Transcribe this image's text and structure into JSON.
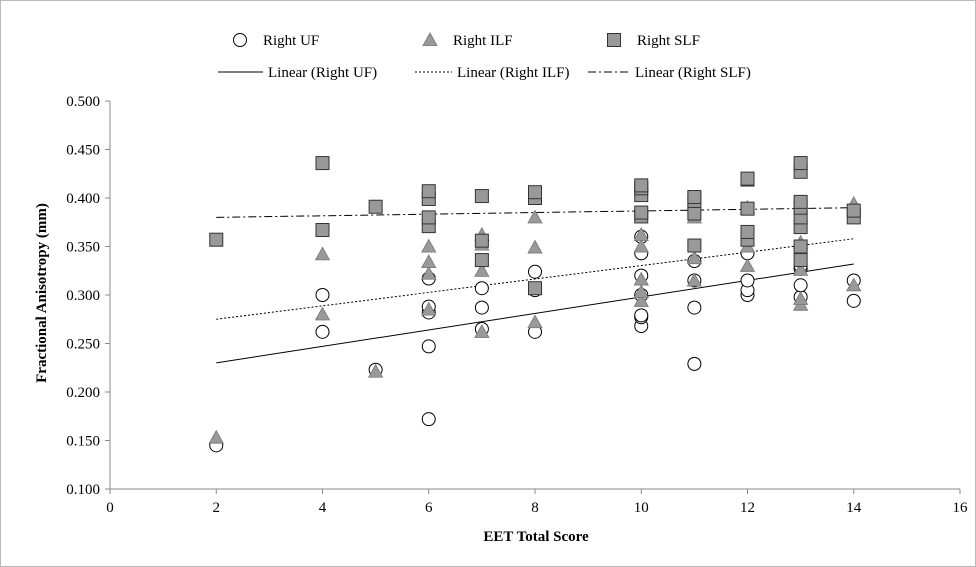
{
  "chart_data": {
    "type": "scatter",
    "title": "",
    "xlabel": "EET Total Score",
    "ylabel": "Fractional Anisotropy (mm)",
    "xlim": [
      0,
      16
    ],
    "ylim": [
      0.1,
      0.5
    ],
    "x_ticks": [
      "0",
      "2",
      "4",
      "6",
      "8",
      "10",
      "12",
      "14",
      "16"
    ],
    "y_ticks": [
      "0.100",
      "0.150",
      "0.200",
      "0.250",
      "0.300",
      "0.350",
      "0.400",
      "0.450",
      "0.500"
    ],
    "grid": "none",
    "legend_position": "top",
    "series": [
      {
        "name": "Right UF",
        "marker": "circle",
        "color": "#ffffff",
        "points": [
          [
            2,
            0.145
          ],
          [
            4,
            0.3
          ],
          [
            4,
            0.262
          ],
          [
            5,
            0.223
          ],
          [
            6,
            0.172
          ],
          [
            6,
            0.247
          ],
          [
            6,
            0.282
          ],
          [
            6,
            0.288
          ],
          [
            6,
            0.317
          ],
          [
            7,
            0.265
          ],
          [
            7,
            0.287
          ],
          [
            7,
            0.307
          ],
          [
            8,
            0.262
          ],
          [
            8,
            0.305
          ],
          [
            8,
            0.324
          ],
          [
            10,
            0.268
          ],
          [
            10,
            0.277
          ],
          [
            10,
            0.279
          ],
          [
            10,
            0.3
          ],
          [
            10,
            0.32
          ],
          [
            10,
            0.343
          ],
          [
            10,
            0.36
          ],
          [
            11,
            0.229
          ],
          [
            11,
            0.287
          ],
          [
            11,
            0.315
          ],
          [
            11,
            0.335
          ],
          [
            12,
            0.3
          ],
          [
            12,
            0.305
          ],
          [
            12,
            0.315
          ],
          [
            12,
            0.343
          ],
          [
            13,
            0.298
          ],
          [
            13,
            0.31
          ],
          [
            13,
            0.327
          ],
          [
            13,
            0.33
          ],
          [
            14,
            0.294
          ],
          [
            14,
            0.315
          ]
        ]
      },
      {
        "name": "Right ILF",
        "marker": "triangle",
        "color": "#999999",
        "points": [
          [
            2,
            0.153
          ],
          [
            4,
            0.342
          ],
          [
            4,
            0.28
          ],
          [
            5,
            0.221
          ],
          [
            6,
            0.285
          ],
          [
            6,
            0.322
          ],
          [
            6,
            0.334
          ],
          [
            6,
            0.35
          ],
          [
            7,
            0.262
          ],
          [
            7,
            0.325
          ],
          [
            7,
            0.352
          ],
          [
            7,
            0.362
          ],
          [
            8,
            0.272
          ],
          [
            8,
            0.349
          ],
          [
            8,
            0.38
          ],
          [
            10,
            0.294
          ],
          [
            10,
            0.303
          ],
          [
            10,
            0.316
          ],
          [
            10,
            0.35
          ],
          [
            10,
            0.362
          ],
          [
            11,
            0.315
          ],
          [
            11,
            0.338
          ],
          [
            11,
            0.38
          ],
          [
            12,
            0.33
          ],
          [
            12,
            0.35
          ],
          [
            12,
            0.39
          ],
          [
            13,
            0.29
          ],
          [
            13,
            0.296
          ],
          [
            13,
            0.326
          ],
          [
            13,
            0.354
          ],
          [
            14,
            0.31
          ],
          [
            14,
            0.394
          ]
        ]
      },
      {
        "name": "Right SLF",
        "marker": "square",
        "color": "#999999",
        "points": [
          [
            2,
            0.357
          ],
          [
            4,
            0.436
          ],
          [
            4,
            0.367
          ],
          [
            5,
            0.391
          ],
          [
            6,
            0.371
          ],
          [
            6,
            0.38
          ],
          [
            6,
            0.399
          ],
          [
            6,
            0.407
          ],
          [
            7,
            0.336
          ],
          [
            7,
            0.356
          ],
          [
            7,
            0.402
          ],
          [
            8,
            0.307
          ],
          [
            8,
            0.4
          ],
          [
            8,
            0.406
          ],
          [
            10,
            0.381
          ],
          [
            10,
            0.385
          ],
          [
            10,
            0.403
          ],
          [
            10,
            0.41
          ],
          [
            10,
            0.413
          ],
          [
            11,
            0.351
          ],
          [
            11,
            0.384
          ],
          [
            11,
            0.397
          ],
          [
            11,
            0.401
          ],
          [
            12,
            0.357
          ],
          [
            12,
            0.365
          ],
          [
            12,
            0.389
          ],
          [
            12,
            0.419
          ],
          [
            12,
            0.42
          ],
          [
            13,
            0.336
          ],
          [
            13,
            0.35
          ],
          [
            13,
            0.37
          ],
          [
            13,
            0.38
          ],
          [
            13,
            0.39
          ],
          [
            13,
            0.396
          ],
          [
            13,
            0.427
          ],
          [
            13,
            0.436
          ],
          [
            14,
            0.38
          ],
          [
            14,
            0.387
          ]
        ]
      }
    ],
    "trendlines": [
      {
        "name": "Linear (Right UF)",
        "dash": "solid",
        "x": [
          2,
          14
        ],
        "y": [
          0.23,
          0.332
        ]
      },
      {
        "name": "Linear (Right ILF)",
        "dash": "dotted",
        "x": [
          2,
          14
        ],
        "y": [
          0.275,
          0.358
        ]
      },
      {
        "name": "Linear (Right SLF)",
        "dash": "dashdot",
        "x": [
          2,
          14
        ],
        "y": [
          0.38,
          0.39
        ]
      }
    ]
  }
}
